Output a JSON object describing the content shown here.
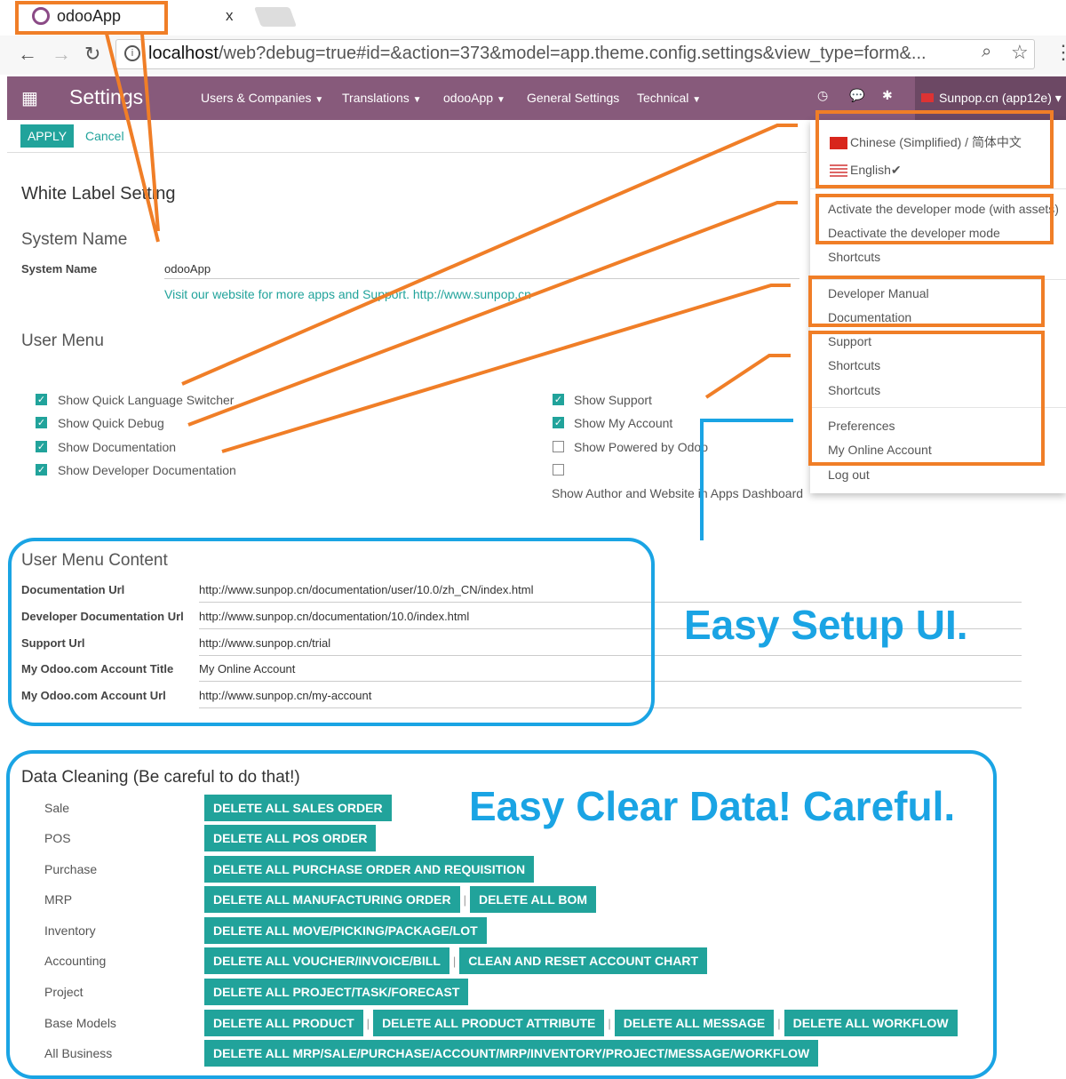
{
  "browser": {
    "tab_title": "odooApp",
    "tab_close": "x",
    "url_host": "localhost",
    "url_rest": "/web?debug=true#id=&action=373&model=app.theme.config.settings&view_type=form&..."
  },
  "navbar": {
    "app_title": "Settings",
    "menus": [
      "Users & Companies",
      "Translations",
      "odooApp",
      "General Settings",
      "Technical"
    ],
    "menu_dropdown": [
      true,
      true,
      true,
      false,
      true
    ],
    "user": "Sunpop.cn (app12e)",
    "color": "#875a7b"
  },
  "toolbar": {
    "apply": "APPLY",
    "cancel": "Cancel"
  },
  "form": {
    "title": "White Label Setting",
    "system_name_section": "System Name",
    "system_name_label": "System Name",
    "system_name_value": "odooApp",
    "website_link": "Visit our website for more apps and Support. http://www.sunpop.cn",
    "user_menu_section": "User Menu",
    "checks_left": [
      {
        "label": "Show Quick Language Switcher",
        "checked": true
      },
      {
        "label": "Show Quick Debug",
        "checked": true
      },
      {
        "label": "Show Documentation",
        "checked": true
      },
      {
        "label": "Show Developer Documentation",
        "checked": true
      }
    ],
    "checks_right": [
      {
        "label": "Show Support",
        "checked": true
      },
      {
        "label": "Show My Account",
        "checked": true
      },
      {
        "label": "Show Powered by Odoo",
        "checked": false
      },
      {
        "label": "Show Author and Website in Apps Dashboard",
        "checked": false
      }
    ],
    "content_section": "User Menu Content",
    "content_rows": [
      {
        "label": "Documentation Url",
        "value": "http://www.sunpop.cn/documentation/user/10.0/zh_CN/index.html"
      },
      {
        "label": "Developer Documentation Url",
        "value": "http://www.sunpop.cn/documentation/10.0/index.html"
      },
      {
        "label": "Support Url",
        "value": "http://www.sunpop.cn/trial"
      },
      {
        "label": "My Odoo.com Account Title",
        "value": "My Online Account"
      },
      {
        "label": "My Odoo.com Account Url",
        "value": "http://www.sunpop.cn/my-account"
      }
    ],
    "cleaning_section": "Data Cleaning (Be careful to do that!)",
    "cleaning_rows": [
      {
        "label": "Sale",
        "buttons": [
          "DELETE ALL SALES ORDER"
        ]
      },
      {
        "label": "POS",
        "buttons": [
          "DELETE ALL POS ORDER"
        ]
      },
      {
        "label": "Purchase",
        "buttons": [
          "DELETE ALL PURCHASE ORDER AND REQUISITION"
        ]
      },
      {
        "label": "MRP",
        "buttons": [
          "DELETE ALL MANUFACTURING ORDER",
          "DELETE ALL BOM"
        ]
      },
      {
        "label": "Inventory",
        "buttons": [
          "DELETE ALL MOVE/PICKING/PACKAGE/LOT"
        ]
      },
      {
        "label": "Accounting",
        "buttons": [
          "DELETE ALL VOUCHER/INVOICE/BILL",
          "CLEAN AND RESET ACCOUNT CHART"
        ]
      },
      {
        "label": "Project",
        "buttons": [
          "DELETE ALL PROJECT/TASK/FORECAST"
        ]
      },
      {
        "label": "Base Models",
        "buttons": [
          "DELETE ALL PRODUCT",
          "DELETE ALL PRODUCT ATTRIBUTE",
          "DELETE ALL MESSAGE",
          "DELETE ALL WORKFLOW"
        ]
      },
      {
        "label": "All Business",
        "buttons": [
          "DELETE ALL MRP/SALE/PURCHASE/ACCOUNT/MRP/INVENTORY/PROJECT/MESSAGE/WORKFLOW"
        ]
      }
    ],
    "separator": "|"
  },
  "dropdown": {
    "items": [
      {
        "label": "Chinese (Simplified) / 简体中文",
        "flag": "cn"
      },
      {
        "label": "English",
        "flag": "us",
        "check": "✔"
      },
      {
        "label": "Activate the developer mode (with assets)"
      },
      {
        "label": "Deactivate the developer mode"
      },
      {
        "label": "Shortcuts"
      },
      {
        "label": "Developer Manual"
      },
      {
        "label": "Documentation"
      },
      {
        "label": "Support"
      },
      {
        "label": "Shortcuts"
      },
      {
        "label": "Shortcuts"
      },
      {
        "label": "Preferences"
      },
      {
        "label": "My Online Account"
      },
      {
        "label": "Log out"
      }
    ]
  },
  "annotations": {
    "setup": "Easy Setup UI.",
    "clear": "Easy Clear Data! Careful.",
    "orange": "#f07e27",
    "blue": "#1aa4e4"
  }
}
